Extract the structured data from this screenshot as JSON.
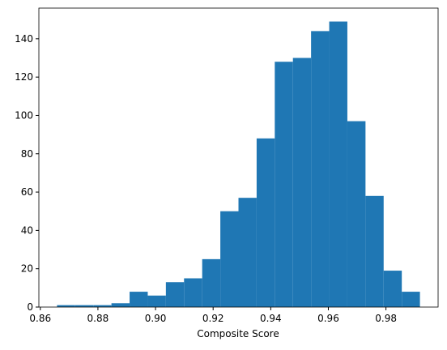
{
  "chart_data": {
    "type": "histogram",
    "xlabel": "Composite Score",
    "color": "#1f77b4",
    "bins": [
      0.8658,
      0.8721,
      0.8784,
      0.8847,
      0.891,
      0.8973,
      0.9036,
      0.9099,
      0.9162,
      0.9225,
      0.9288,
      0.9351,
      0.9414,
      0.9477,
      0.954,
      0.9603,
      0.9666,
      0.9729,
      0.9792,
      0.9855,
      0.9918
    ],
    "values": [
      1,
      1,
      1,
      2,
      8,
      6,
      13,
      15,
      25,
      50,
      57,
      88,
      128,
      130,
      144,
      149,
      97,
      58,
      19,
      8
    ],
    "xlim": [
      0.8595,
      0.9981
    ],
    "ylim": [
      0,
      156
    ],
    "xticks": [
      0.86,
      0.88,
      {
        "value": 0.9,
        "label": "0.90"
      },
      0.92,
      0.94,
      0.96,
      0.98
    ],
    "yticks": [
      0,
      20,
      40,
      60,
      80,
      100,
      120,
      140
    ]
  }
}
